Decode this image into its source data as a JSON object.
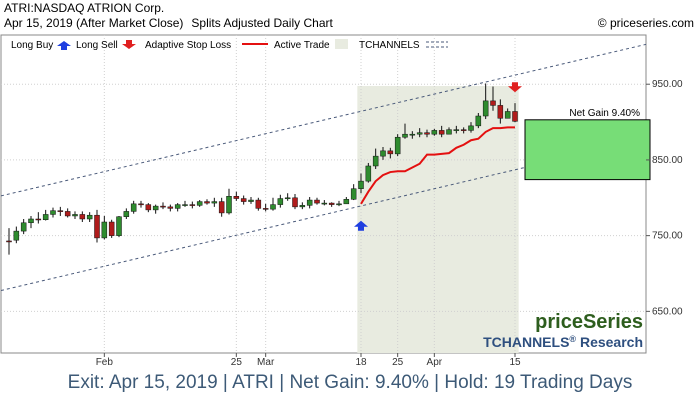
{
  "header": {
    "title": "ATRI:NASDAQ ATRION Corp.",
    "date_status": "Apr 15, 2019 (After Market Close)",
    "chart_kind": "Splits Adjusted Daily Chart",
    "source": "© priceseries.com"
  },
  "legend": {
    "long_buy": "Long Buy",
    "long_sell": "Long Sell",
    "stop_loss": "Adaptive Stop Loss",
    "active_trade": "Active Trade",
    "channels": "TCHANNELS"
  },
  "watermark": {
    "brand": "priceSeries",
    "research_prefix": "TCHANNELS",
    "research_mark": "®",
    "research_suffix": " Research"
  },
  "footer": "Exit: Apr 15, 2019 | ATRI | Net Gain: 9.40% | Hold: 19 Trading Days",
  "colors": {
    "up_candle": "#2e8b2e",
    "down_candle": "#b01c1c",
    "stop_loss": "#e41010",
    "active_trade": "#e8ebe0",
    "gain_box": "#77dd77",
    "buy_arrow": "#1f3fe0",
    "sell_arrow": "#e02020",
    "channel": "#4a5a7a",
    "brand_green": "#2e5e1e",
    "brand_blue": "#2e4f7f"
  },
  "chart_data": {
    "type": "candlestick",
    "y_axis": {
      "ticks": [
        650,
        750,
        850,
        950
      ],
      "tick_labels": [
        "650.00",
        "750.00",
        "850.00",
        "950.00"
      ],
      "ylim": [
        595,
        1015
      ],
      "position": "right"
    },
    "x_axis": {
      "labels": [
        {
          "text": "Feb",
          "i": 13
        },
        {
          "text": "25",
          "i": 31
        },
        {
          "text": "Mar",
          "i": 35
        },
        {
          "text": "18",
          "i": 48
        },
        {
          "text": "25",
          "i": 53
        },
        {
          "text": "Apr",
          "i": 58
        },
        {
          "text": "15",
          "i": 69
        }
      ]
    },
    "candles": [
      [
        743,
        742,
        760,
        725
      ],
      [
        744,
        756,
        762,
        740
      ],
      [
        756,
        767,
        772,
        752
      ],
      [
        767,
        772,
        776,
        760
      ],
      [
        772,
        771,
        781,
        766
      ],
      [
        771,
        778,
        784,
        770
      ],
      [
        778,
        783,
        787,
        774
      ],
      [
        783,
        782,
        788,
        776
      ],
      [
        782,
        776,
        786,
        774
      ],
      [
        776,
        778,
        782,
        772
      ],
      [
        778,
        772,
        782,
        768
      ],
      [
        772,
        777,
        781,
        768
      ],
      [
        777,
        747,
        784,
        741
      ],
      [
        747,
        768,
        776,
        745
      ],
      [
        768,
        750,
        771,
        747
      ],
      [
        750,
        775,
        776,
        748
      ],
      [
        775,
        782,
        786,
        772
      ],
      [
        782,
        792,
        796,
        779
      ],
      [
        792,
        791,
        796,
        787
      ],
      [
        791,
        784,
        793,
        781
      ],
      [
        784,
        789,
        791,
        779
      ],
      [
        789,
        788,
        794,
        785
      ],
      [
        788,
        786,
        791,
        782
      ],
      [
        786,
        791,
        793,
        782
      ],
      [
        791,
        791,
        796,
        788
      ],
      [
        791,
        790,
        795,
        786
      ],
      [
        790,
        795,
        797,
        788
      ],
      [
        795,
        793,
        798,
        791
      ],
      [
        793,
        795,
        800,
        788
      ],
      [
        795,
        780,
        800,
        775
      ],
      [
        780,
        802,
        812,
        778
      ],
      [
        802,
        799,
        808,
        796
      ],
      [
        799,
        795,
        803,
        791
      ],
      [
        795,
        797,
        801,
        792
      ],
      [
        797,
        786,
        800,
        783
      ],
      [
        786,
        785,
        792,
        782
      ],
      [
        785,
        791,
        800,
        783
      ],
      [
        791,
        799,
        804,
        787
      ],
      [
        799,
        800,
        806,
        796
      ],
      [
        800,
        788,
        805,
        785
      ],
      [
        788,
        790,
        794,
        785
      ],
      [
        790,
        797,
        801,
        786
      ],
      [
        797,
        793,
        800,
        791
      ],
      [
        793,
        793,
        797,
        790
      ],
      [
        793,
        791,
        794,
        788
      ],
      [
        791,
        792,
        796,
        789
      ],
      [
        792,
        798,
        801,
        792
      ],
      [
        798,
        812,
        818,
        797
      ],
      [
        812,
        822,
        832,
        806
      ],
      [
        822,
        842,
        846,
        820
      ],
      [
        842,
        855,
        865,
        838
      ],
      [
        855,
        862,
        867,
        850
      ],
      [
        862,
        858,
        866,
        852
      ],
      [
        858,
        880,
        884,
        855
      ],
      [
        880,
        884,
        898,
        878
      ],
      [
        884,
        884,
        888,
        878
      ],
      [
        884,
        886,
        892,
        880
      ],
      [
        886,
        884,
        890,
        880
      ],
      [
        884,
        889,
        891,
        882
      ],
      [
        889,
        884,
        895,
        880
      ],
      [
        884,
        890,
        893,
        885
      ],
      [
        890,
        890,
        895,
        885
      ],
      [
        890,
        889,
        893,
        885
      ],
      [
        889,
        895,
        900,
        886
      ],
      [
        895,
        908,
        912,
        892
      ],
      [
        908,
        928,
        951,
        904
      ],
      [
        928,
        922,
        947,
        915
      ],
      [
        922,
        905,
        930,
        898
      ],
      [
        905,
        914,
        918,
        905
      ],
      [
        914,
        901,
        925,
        900
      ]
    ],
    "channel_upper": {
      "i1": 0,
      "v1": 805,
      "i2": 69,
      "v2": 962
    },
    "channel_lower": {
      "i1": 0,
      "v1": 680,
      "i2": 69,
      "v2": 837
    },
    "stop_loss": [
      [
        48,
        792
      ],
      [
        49,
        808
      ],
      [
        50,
        822
      ],
      [
        51,
        830
      ],
      [
        52,
        834
      ],
      [
        53,
        835
      ],
      [
        54,
        835
      ],
      [
        55,
        840
      ],
      [
        56,
        845
      ],
      [
        57,
        857
      ],
      [
        58,
        857
      ],
      [
        59,
        858
      ],
      [
        60,
        859
      ],
      [
        61,
        866
      ],
      [
        62,
        870
      ],
      [
        63,
        876
      ],
      [
        64,
        878
      ],
      [
        65,
        887
      ],
      [
        66,
        892
      ],
      [
        67,
        892
      ],
      [
        68,
        893
      ],
      [
        69,
        893
      ]
    ],
    "active_trade": {
      "start_i": 47.5,
      "end_i": 69.5
    },
    "buy_signal": {
      "i": 48,
      "value": 763
    },
    "sell_signal": {
      "i": 69,
      "value": 946
    },
    "gain_box": {
      "label": "Net Gain 9.40%",
      "from": 824,
      "to": 903
    }
  }
}
